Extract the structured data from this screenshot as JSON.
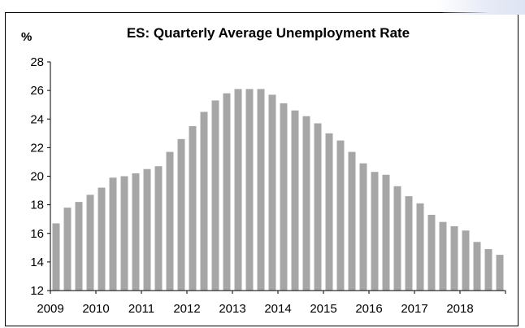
{
  "chart_data": {
    "type": "bar",
    "title": "ES: Quarterly Average Unemployment Rate",
    "unit_label": "%",
    "xlabel": "",
    "ylabel": "",
    "ylim": [
      12,
      28
    ],
    "yticks": [
      "12",
      "14",
      "16",
      "18",
      "20",
      "22",
      "24",
      "26",
      "28"
    ],
    "year_labels": [
      "2009",
      "2010",
      "2011",
      "2012",
      "2013",
      "2014",
      "2015",
      "2016",
      "2017",
      "2018"
    ],
    "grid": false,
    "legend": "none",
    "bar_color": "#a6a6a6",
    "values": [
      16.7,
      17.8,
      18.2,
      18.7,
      19.2,
      19.9,
      20.0,
      20.2,
      20.5,
      20.7,
      21.7,
      22.6,
      23.5,
      24.5,
      25.3,
      25.8,
      26.1,
      26.1,
      26.1,
      25.7,
      25.1,
      24.6,
      24.2,
      23.7,
      23.0,
      22.5,
      21.7,
      20.9,
      20.3,
      20.1,
      19.3,
      18.6,
      18.1,
      17.3,
      16.8,
      16.5,
      16.2,
      15.4,
      14.9,
      14.5
    ]
  }
}
